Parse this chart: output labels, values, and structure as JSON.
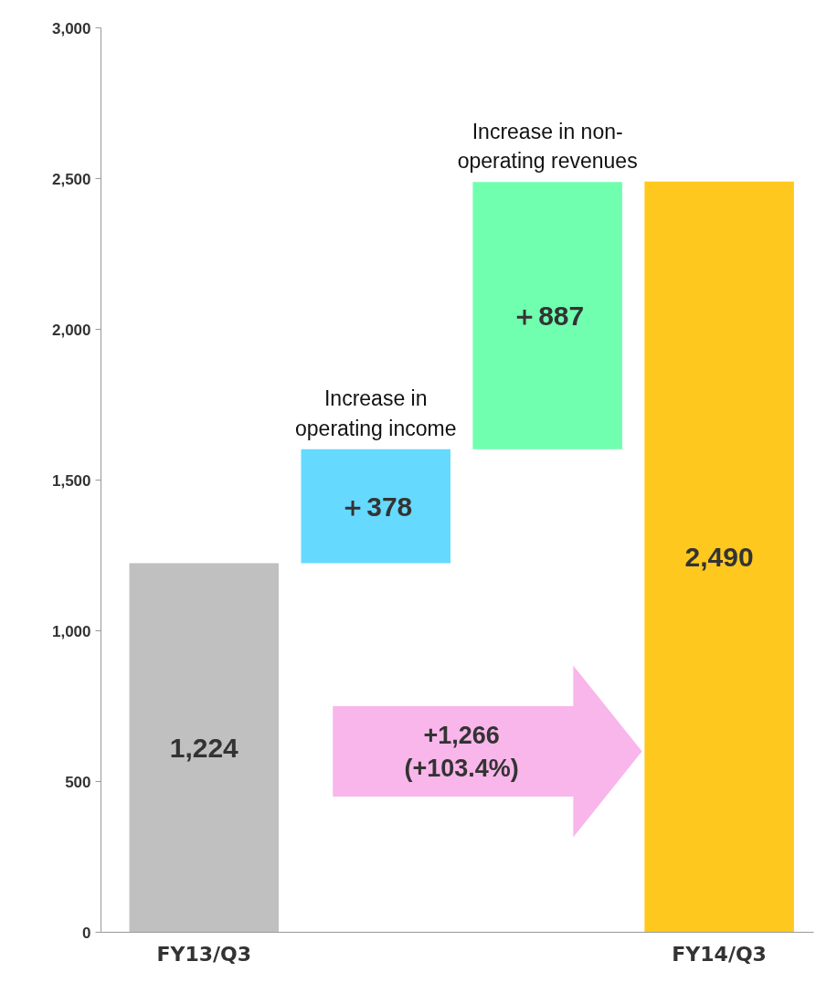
{
  "chart_data": {
    "type": "bar",
    "categories": [
      "FY13/Q3",
      null,
      null,
      "FY14/Q3"
    ],
    "values": [
      1224,
      378,
      887,
      2490
    ],
    "base": [
      0,
      1224,
      1602,
      0
    ],
    "colors": [
      "#c0c0c0",
      "#66d9ff",
      "#6fffaf",
      "#ffc81e"
    ],
    "value_labels": [
      "1,224",
      "＋378",
      "＋887",
      "2,490"
    ],
    "annotations": [
      "Increase in\noperating income",
      "Increase in non-\noperating revenues",
      "+1,266\n(+103.4%)"
    ],
    "ylim": [
      0,
      3000
    ],
    "yticks": [
      0,
      500,
      {
        "value": 1000,
        "label": "1,000"
      },
      {
        "value": 1500,
        "label": "1,500"
      },
      {
        "value": 2000,
        "label": "2,000"
      },
      {
        "value": 2500,
        "label": "2,500"
      },
      {
        "value": 3000,
        "label": "3,000"
      }
    ],
    "grid": false
  }
}
